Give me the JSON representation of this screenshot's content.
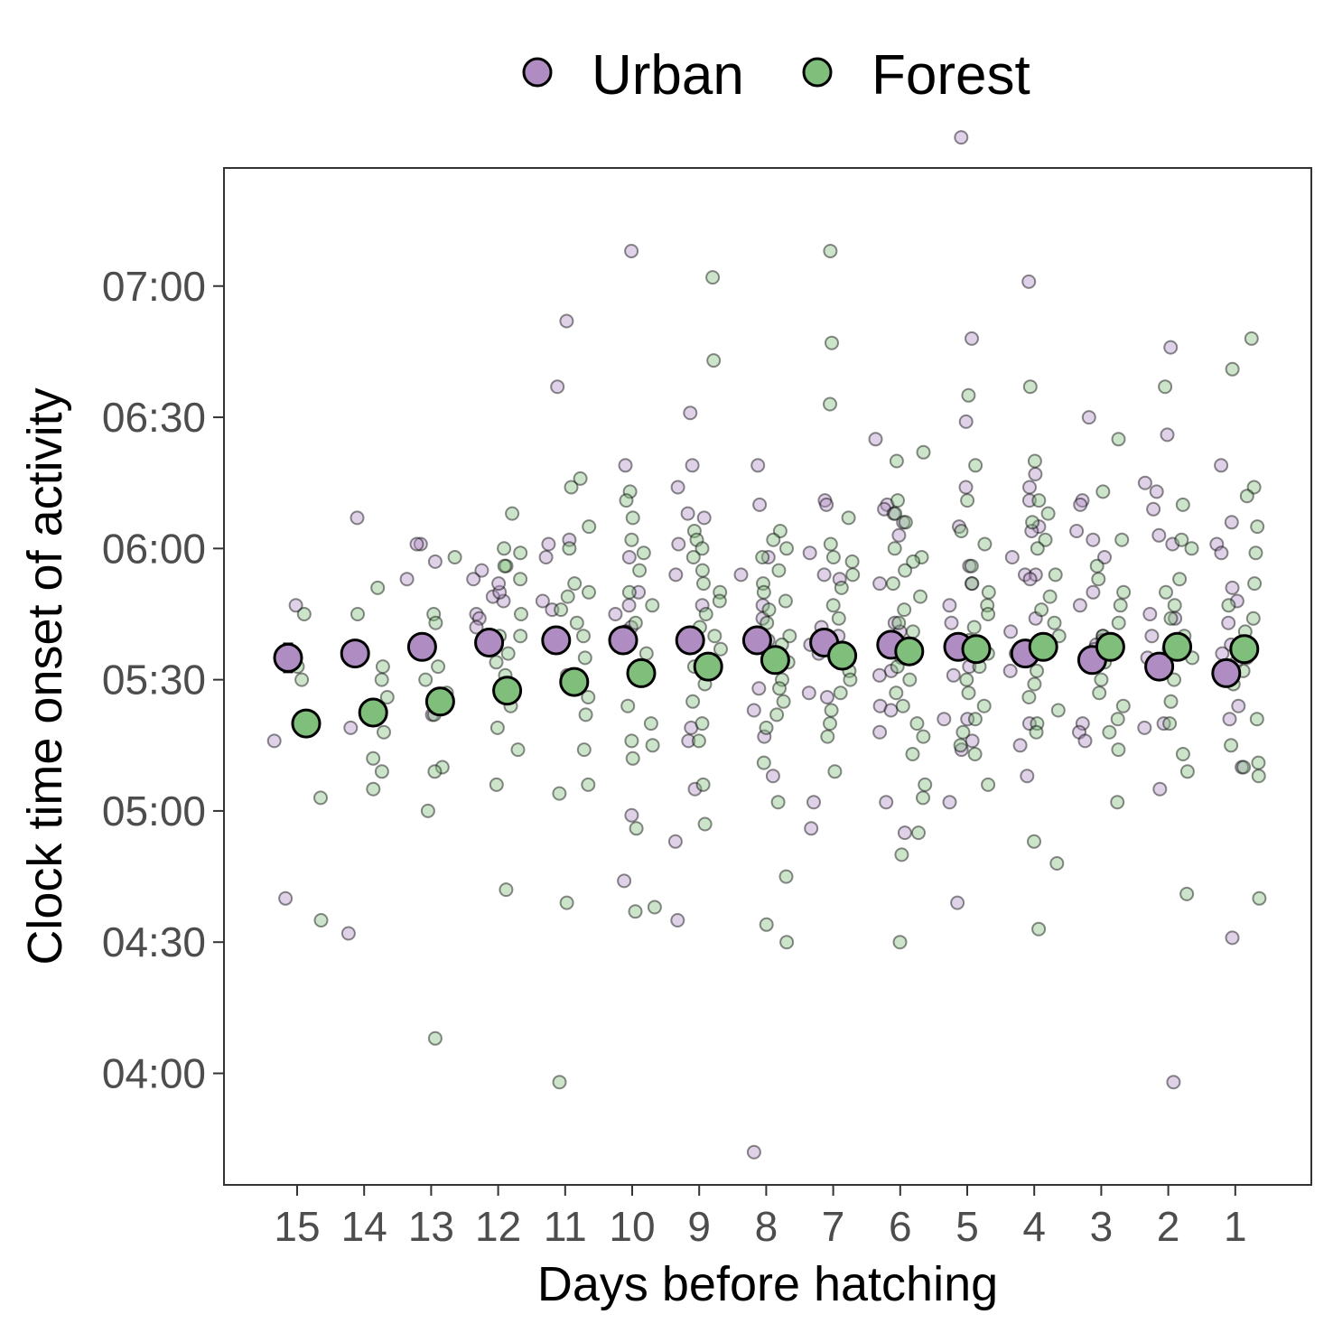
{
  "chart_data": {
    "type": "scatter",
    "xlabel": "Days before hatching",
    "ylabel": "Clock time onset of activity",
    "x_categories": [
      "15",
      "14",
      "13",
      "12",
      "11",
      "10",
      "9",
      "8",
      "7",
      "6",
      "5",
      "4",
      "3",
      "2",
      "1"
    ],
    "y_ticks": [
      "04:00",
      "04:30",
      "05:00",
      "05:30",
      "06:00",
      "06:30",
      "07:00"
    ],
    "y_tick_values": [
      240,
      270,
      300,
      330,
      360,
      390,
      420
    ],
    "ylim_minutes": [
      214.5,
      447
    ],
    "grid": false,
    "legend": {
      "position": "top",
      "entries": [
        "Urban",
        "Forest"
      ]
    },
    "colors": {
      "Urban": "#af8dc3",
      "Forest": "#7fbf7b",
      "outline": "#000000"
    },
    "series": [
      {
        "name": "Urban",
        "mean_minutes": [
          335,
          336,
          337.5,
          338.5,
          339,
          339,
          339,
          339,
          338.5,
          338,
          337.5,
          336,
          334.5,
          333,
          331.5
        ],
        "error_minutes": [
          3.5,
          3,
          3,
          2.5,
          2.5,
          2,
          2,
          2,
          2,
          2,
          2,
          2,
          2,
          2.5,
          2.5
        ],
        "raw": [
          {
            "day": "15",
            "minutes": [
              347,
              316,
              280
            ]
          },
          {
            "day": "14",
            "minutes": [
              367,
              319,
              272
            ]
          },
          {
            "day": "13",
            "minutes": [
              361,
              361,
              357,
              353,
              322
            ]
          },
          {
            "day": "12",
            "minutes": [
              355,
              348,
              349,
              345,
              344,
              350,
              352,
              353,
              342,
              338
            ]
          },
          {
            "day": "11",
            "minutes": [
              412,
              397,
              362,
              361,
              358,
              348,
              346
            ]
          },
          {
            "day": "10",
            "minutes": [
              428,
              379,
              358,
              350,
              347,
              345,
              342,
              341,
              340,
              299,
              284
            ]
          },
          {
            "day": "9",
            "minutes": [
              391,
              379,
              374,
              368,
              367,
              361,
              354,
              347,
              319,
              316,
              305,
              293,
              275
            ]
          },
          {
            "day": "8",
            "minutes": [
              379,
              370,
              358,
              354,
              347,
              344,
              339,
              328,
              323,
              317,
              308,
              222
            ]
          },
          {
            "day": "7",
            "minutes": [
              371,
              370,
              359,
              354,
              353,
              342,
              340,
              338,
              336,
              327,
              326,
              302,
              296
            ]
          },
          {
            "day": "6",
            "minutes": [
              385,
              370,
              369,
              368,
              366,
              363,
              352,
              343,
              341,
              338,
              332,
              331,
              324,
              323,
              318,
              302,
              295
            ]
          },
          {
            "day": "5",
            "minutes": [
              454,
              408,
              389,
              374,
              365,
              356,
              352,
              347,
              343,
              333,
              331,
              321,
              321,
              316,
              314,
              302,
              279
            ]
          },
          {
            "day": "4",
            "minutes": [
              421,
              377,
              374,
              371,
              365,
              364,
              358,
              354,
              354,
              353,
              344,
              341,
              336,
              332,
              320,
              315,
              308
            ]
          },
          {
            "day": "3",
            "minutes": [
              390,
              371,
              370,
              364,
              362,
              358,
              350,
              347,
              340,
              339,
              338,
              337,
              320,
              318,
              316
            ]
          },
          {
            "day": "2",
            "minutes": [
              406,
              386,
              375,
              373,
              369,
              363,
              361,
              345,
              344,
              340,
              337,
              335,
              320,
              319,
              305,
              238
            ]
          },
          {
            "day": "1",
            "minutes": [
              379,
              366,
              361,
              359,
              351,
              348,
              343,
              338,
              336,
              334,
              324,
              321,
              310,
              271
            ]
          }
        ]
      },
      {
        "name": "Forest",
        "mean_minutes": [
          320,
          322.5,
          325,
          327.5,
          329.5,
          331.5,
          333,
          334.5,
          335.5,
          336.5,
          337,
          337.5,
          337.5,
          337.5,
          337
        ],
        "error_minutes": [
          3,
          2.5,
          2.5,
          2.5,
          2.5,
          2,
          2,
          2,
          2,
          2,
          2,
          2,
          2,
          2,
          2
        ],
        "raw": [
          {
            "day": "15",
            "minutes": [
              345,
              333,
              330,
              303,
              275
            ]
          },
          {
            "day": "14",
            "minutes": [
              351,
              345,
              333,
              330,
              326,
              318,
              312,
              309,
              305
            ]
          },
          {
            "day": "13",
            "minutes": [
              358,
              345,
              343,
              336,
              333,
              330,
              327,
              322,
              310,
              309,
              300,
              248
            ]
          },
          {
            "day": "12",
            "minutes": [
              368,
              360,
              359,
              356,
              356,
              353,
              345,
              340,
              340,
              336,
              334,
              331,
              327,
              324,
              319,
              314,
              306,
              282
            ]
          },
          {
            "day": "11",
            "minutes": [
              376,
              374,
              365,
              360,
              352,
              350,
              349,
              346,
              343,
              340,
              335,
              331,
              326,
              322,
              314,
              306,
              304,
              279,
              238
            ]
          },
          {
            "day": "10",
            "minutes": [
              373,
              371,
              367,
              362,
              359,
              355,
              350,
              347,
              343,
              341,
              336,
              330,
              324,
              320,
              316,
              315,
              312,
              296,
              278,
              277
            ]
          },
          {
            "day": "9",
            "minutes": [
              422,
              403,
              364,
              362,
              360,
              358,
              355,
              352,
              350,
              348,
              345,
              342,
              340,
              337,
              333,
              329,
              325,
              320,
              316,
              306,
              297
            ]
          },
          {
            "day": "8",
            "minutes": [
              364,
              362,
              360,
              358,
              355,
              352,
              350,
              348,
              346,
              343,
              340,
              338,
              334,
              330,
              328,
              325,
              322,
              319,
              311,
              302,
              285,
              274,
              270
            ]
          },
          {
            "day": "7",
            "minutes": [
              428,
              407,
              393,
              367,
              361,
              358,
              357,
              354,
              351,
              347,
              344,
              340,
              338,
              335,
              332,
              330,
              327,
              323,
              320,
              317,
              309
            ]
          },
          {
            "day": "6",
            "minutes": [
              382,
              380,
              371,
              368,
              366,
              360,
              358,
              357,
              355,
              352,
              349,
              346,
              343,
              341,
              338,
              335,
              333,
              330,
              327,
              324,
              320,
              317,
              313,
              306,
              303,
              295,
              290,
              270
            ]
          },
          {
            "day": "5",
            "minutes": [
              395,
              379,
              371,
              364,
              361,
              356,
              352,
              350,
              347,
              345,
              342,
              339,
              336,
              333,
              330,
              327,
              324,
              321,
              318,
              315,
              313,
              306
            ]
          },
          {
            "day": "4",
            "minutes": [
              397,
              380,
              371,
              368,
              366,
              362,
              360,
              354,
              349,
              346,
              343,
              340,
              338,
              335,
              332,
              329,
              326,
              323,
              320,
              318,
              293,
              288,
              273
            ]
          },
          {
            "day": "3",
            "minutes": [
              385,
              373,
              362,
              356,
              353,
              350,
              347,
              343,
              340,
              337,
              334,
              330,
              327,
              324,
              321,
              318,
              314,
              302
            ]
          },
          {
            "day": "2",
            "minutes": [
              397,
              370,
              362,
              360,
              353,
              350,
              347,
              344,
              340,
              335,
              330,
              325,
              320,
              313,
              309,
              281
            ]
          },
          {
            "day": "1",
            "minutes": [
              408,
              401,
              374,
              372,
              365,
              359,
              352,
              347,
              344,
              341,
              338,
              335,
              332,
              329,
              321,
              315,
              311,
              310,
              308,
              280
            ]
          }
        ]
      }
    ]
  }
}
